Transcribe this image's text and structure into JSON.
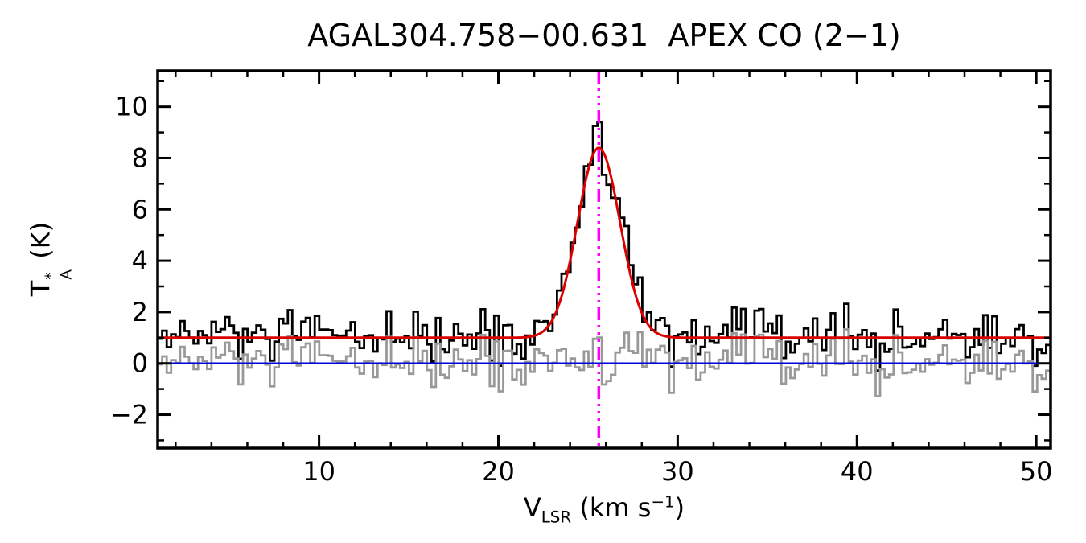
{
  "title": "AGAL304.758−00.631  APEX CO (2−1)",
  "axes": {
    "xlabel": {
      "var": "V",
      "sub": "LSR",
      "unit_pre": " (km s",
      "exp": "−1",
      "unit_post": ")"
    },
    "ylabel": {
      "var": "T",
      "sup": "*",
      "sub": "A",
      "unit": " (K)"
    },
    "xlim": [
      1,
      50.8
    ],
    "ylim": [
      -3.3,
      11.4
    ],
    "xticks": [
      10,
      20,
      30,
      40,
      50
    ],
    "yticks": [
      -2,
      0,
      2,
      4,
      6,
      8,
      10
    ],
    "x_minor_step": 2,
    "y_minor_step": 1
  },
  "chart_data": {
    "type": "line",
    "title": "AGAL304.758−00.631  APEX CO (2−1)",
    "xlabel": "V_LSR (km s^−1)",
    "ylabel": "T*_A (K)",
    "xlim": [
      1,
      50.8
    ],
    "ylim": [
      -3.3,
      11.4
    ],
    "grid": false,
    "legend": "none",
    "channel_width_kms": 0.25,
    "noise_seed": 12345,
    "series": [
      {
        "name": "observed-spectrum",
        "style": "histogram",
        "color": "#000000",
        "baseline_K": 1.0,
        "peak_K": 9.4,
        "peak_velocity_kms": 25.6,
        "noise_rms_K": 0.55
      },
      {
        "name": "residual-spectrum",
        "style": "histogram",
        "color": "#999999",
        "baseline_K": 0.0,
        "noise_rms_K": 0.55
      },
      {
        "name": "gaussian-fit",
        "style": "curve",
        "color": "#dd0000",
        "params": {
          "baseline_K": 1.0,
          "amplitude_K": 7.4,
          "center_kms": 25.6,
          "fwhm_kms": 2.8
        }
      },
      {
        "name": "zero-baseline",
        "style": "hline",
        "color": "#0000d8",
        "y": 0
      },
      {
        "name": "velocity-marker",
        "style": "vline-dashdot",
        "color": "#ff00ff",
        "x": 25.6
      }
    ]
  }
}
